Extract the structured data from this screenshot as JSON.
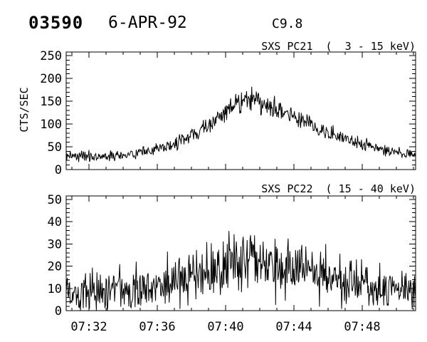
{
  "page_bg": "#ffffff",
  "ink_color": "#000000",
  "header": {
    "flare_number": "03590",
    "date": "6-APR-92",
    "goes_class": "C9.8"
  },
  "x_axis": {
    "start_time": "07:30:40",
    "end_time": "07:51:08",
    "tick_labels": [
      "07:32",
      "07:36",
      "07:40",
      "07:44",
      "07:48"
    ],
    "tick_minutes": [
      2,
      6,
      10,
      14,
      18
    ],
    "minor_tick_interval_minutes": 1,
    "range_minutes": [
      0.667,
      21.125
    ]
  },
  "chart_data": [
    {
      "type": "line",
      "title": "SXS PC21  (  3 - 15 keV)",
      "instrument": "SXS PC21",
      "energy_band": "3 - 15 keV",
      "ylabel": "CTS/SEC",
      "ylim": [
        0,
        250
      ],
      "yticks": [
        0,
        50,
        100,
        150,
        200,
        250
      ],
      "y_minor_interval": 10,
      "grid": false,
      "legend": "none",
      "baseline_cts_per_sec": 30,
      "peak_cts_per_sec": 155,
      "peak_spike_max": 185,
      "peak_time": "07:41",
      "noise_sigma_coeff": 1.0,
      "anchors_minute_mean": [
        [
          0.667,
          32
        ],
        [
          1.5,
          30
        ],
        [
          2.5,
          29
        ],
        [
          3.5,
          30
        ],
        [
          4.4,
          32
        ],
        [
          5.5,
          39
        ],
        [
          6.5,
          49
        ],
        [
          7.5,
          64
        ],
        [
          8.5,
          84
        ],
        [
          9.5,
          110
        ],
        [
          10.2,
          133
        ],
        [
          10.8,
          147
        ],
        [
          11.3,
          154
        ],
        [
          11.8,
          151
        ],
        [
          12.3,
          144
        ],
        [
          13.0,
          133
        ],
        [
          14.0,
          117
        ],
        [
          15.0,
          99
        ],
        [
          15.5,
          90
        ],
        [
          16.5,
          74
        ],
        [
          17.5,
          60
        ],
        [
          18.5,
          50
        ],
        [
          19.5,
          41
        ],
        [
          20.5,
          35
        ],
        [
          21.125,
          33
        ]
      ]
    },
    {
      "type": "line",
      "title": "SXS PC22  ( 15 - 40 keV)",
      "instrument": "SXS PC22",
      "energy_band": "15 - 40 keV",
      "ylabel": "",
      "ylim": [
        0,
        50
      ],
      "yticks": [
        0,
        10,
        20,
        30,
        40,
        50
      ],
      "y_minor_interval": 2,
      "grid": false,
      "legend": "none",
      "baseline_cts_per_sec": 8.5,
      "peak_cts_per_sec": 21.5,
      "peak_spike_max": 34,
      "peak_time": "07:41",
      "noise_sigma_coeff": 1.45,
      "anchors_minute_mean": [
        [
          0.667,
          8.5
        ],
        [
          2.0,
          8.5
        ],
        [
          3.0,
          9.0
        ],
        [
          4.0,
          9.5
        ],
        [
          5.0,
          10.5
        ],
        [
          6.0,
          12.0
        ],
        [
          7.0,
          14.0
        ],
        [
          8.0,
          16.0
        ],
        [
          9.0,
          17.5
        ],
        [
          9.8,
          19.5
        ],
        [
          10.5,
          21.0
        ],
        [
          11.3,
          21.5
        ],
        [
          12.0,
          21.0
        ],
        [
          13.0,
          20.0
        ],
        [
          14.0,
          18.5
        ],
        [
          15.0,
          17.0
        ],
        [
          16.0,
          15.0
        ],
        [
          17.0,
          13.0
        ],
        [
          18.0,
          11.0
        ],
        [
          19.0,
          10.0
        ],
        [
          20.0,
          9.5
        ],
        [
          21.125,
          9.0
        ]
      ]
    }
  ]
}
